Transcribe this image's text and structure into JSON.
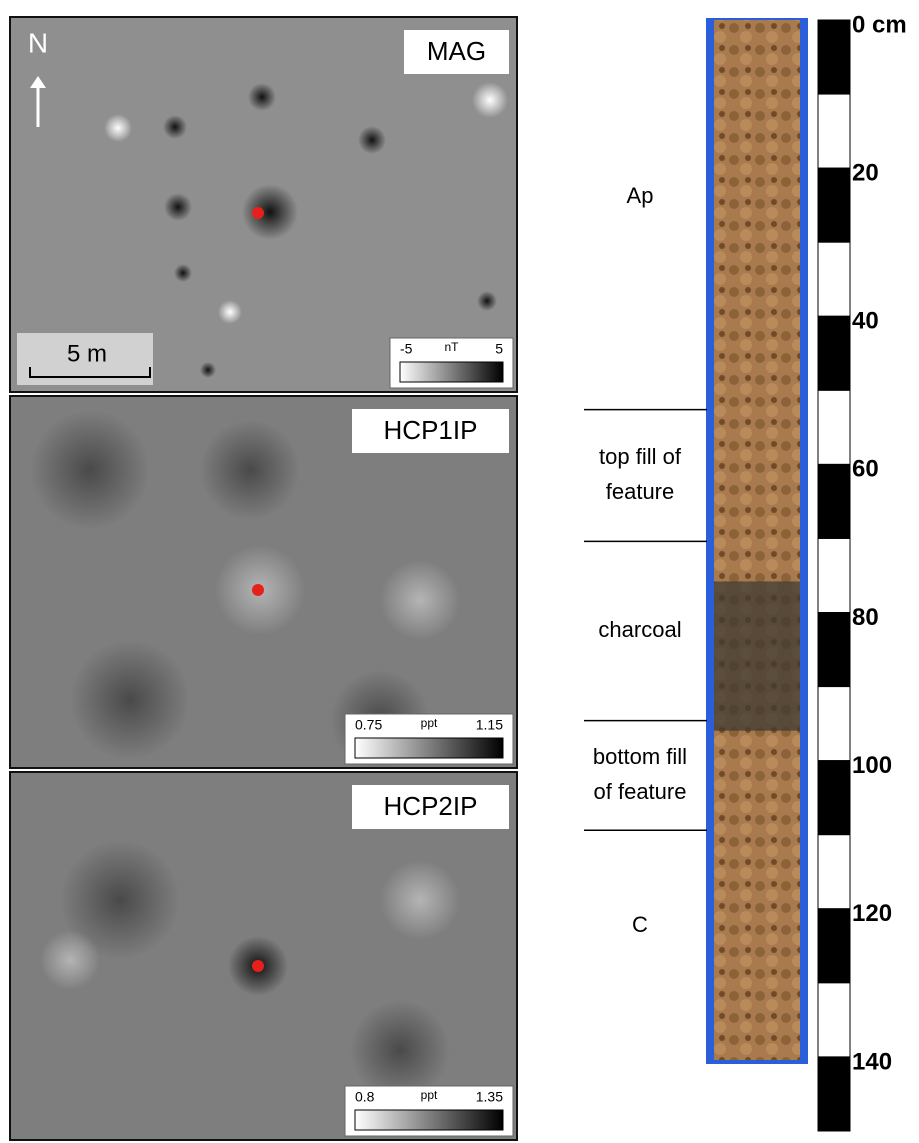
{
  "north": "N",
  "scale_bar": "5 m",
  "panels": [
    {
      "label": "MAG",
      "legend": {
        "min": -5,
        "unit": "nT",
        "max": 5
      }
    },
    {
      "label": "HCP1IP",
      "legend": {
        "min": 0.75,
        "unit": "ppt",
        "max": 1.15
      }
    },
    {
      "label": "HCP2IP",
      "legend": {
        "min": 0.8,
        "unit": "ppt",
        "max": 1.35
      }
    }
  ],
  "core": {
    "depth_lim": [
      0,
      150
    ],
    "depth_ticks": [
      {
        "value": 0,
        "label": "0 cm"
      },
      20,
      40,
      60,
      80,
      100,
      120,
      140
    ],
    "boundaries": [
      52.6,
      70.4,
      94.6,
      109.4
    ],
    "horizons": [
      [
        "Ap"
      ],
      [
        "top fill of",
        "feature"
      ],
      [
        "charcoal"
      ],
      [
        "bottom fill",
        "of feature"
      ],
      [
        "C"
      ]
    ]
  }
}
